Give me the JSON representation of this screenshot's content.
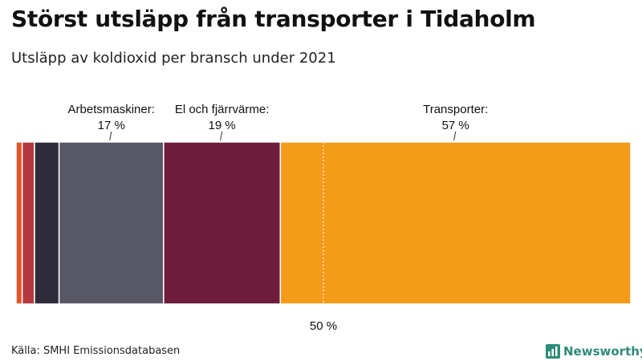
{
  "header": {
    "title": "Störst utsläpp från transporter i Tidaholm",
    "subtitle": "Utsläpp av koldioxid per bransch under 2021"
  },
  "chart_data": {
    "type": "bar",
    "orientation": "horizontal-stacked",
    "title": "Störst utsläpp från transporter i Tidaholm",
    "subtitle": "Utsläpp av koldioxid per bransch under 2021",
    "unit": "%",
    "xlim": [
      0,
      100
    ],
    "reference_line": {
      "value": 50,
      "label": "50 %",
      "style": "dotted"
    },
    "segments": [
      {
        "name": "",
        "value": 1,
        "color": "#e0562d",
        "label": "",
        "value_label": ""
      },
      {
        "name": "",
        "value": 2,
        "color": "#b5373f",
        "label": "",
        "value_label": ""
      },
      {
        "name": "",
        "value": 4,
        "color": "#2e2b3a",
        "label": "",
        "value_label": ""
      },
      {
        "name": "Arbetsmaskiner",
        "value": 17,
        "color": "#585766",
        "label": "Arbetsmaskiner:",
        "value_label": "17 %"
      },
      {
        "name": "El och fjärrvärme",
        "value": 19,
        "color": "#6e1d3a",
        "label": "El och fjärrvärme:",
        "value_label": "19 %"
      },
      {
        "name": "Transporter",
        "value": 57,
        "color": "#f49b1a",
        "label": "Transporter:",
        "value_label": "57 %"
      }
    ]
  },
  "footer": {
    "source": "Källa: SMHI Emissionsdatabasen",
    "brand": "Newsworthy",
    "brand_color": "#2e8b7a",
    "brand_icon": "newsworthy-logo-icon"
  }
}
